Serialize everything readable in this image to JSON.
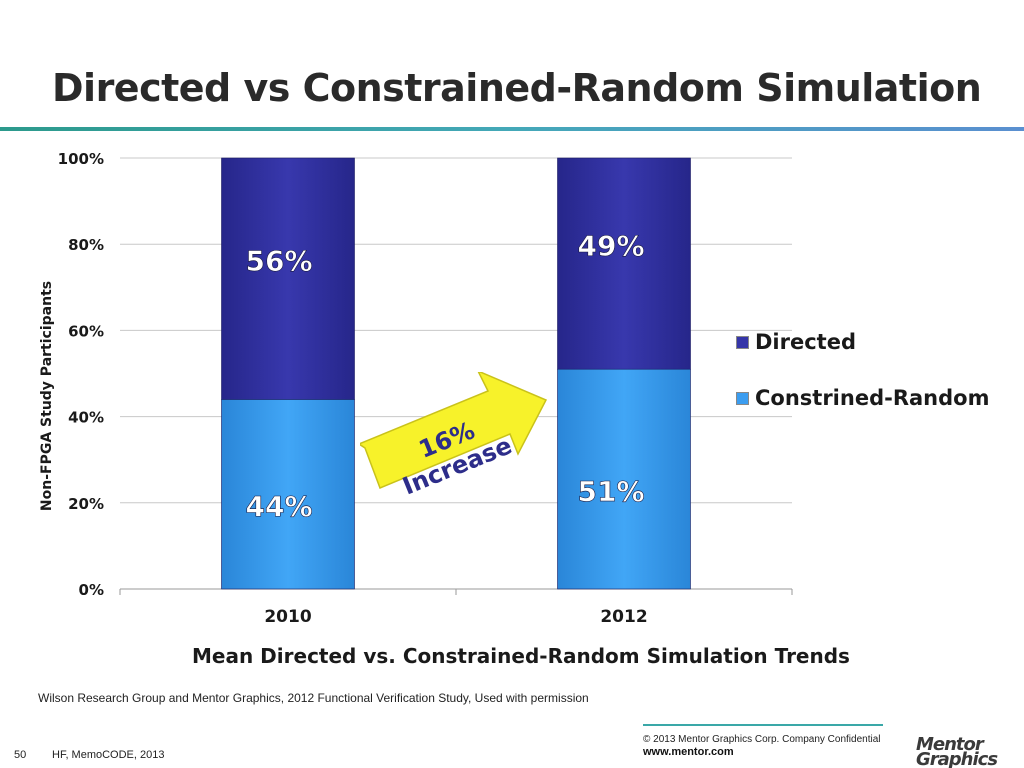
{
  "slide": {
    "title": "Directed vs Constrained-Random Simulation",
    "source_note": "Wilson Research Group and Mentor Graphics, 2012 Functional Verification Study,   Used with permission",
    "callout": "16% Increase",
    "footer": {
      "copyright": "© 2013 Mentor Graphics Corp.     Company Confidential",
      "url": "www.mentor.com",
      "page_number": "50",
      "event": "HF, MemoCODE, 2013",
      "logo_line1": "Mentor",
      "logo_line2": "Graphics"
    },
    "colors": {
      "directed": "#3535a8",
      "constrained_random": "#3b9df0",
      "callout_fill": "#f7f22a",
      "title_rule": "#2c9a8c"
    }
  },
  "chart_data": {
    "type": "bar",
    "stacked": true,
    "percent_stacked": true,
    "categories": [
      "2010",
      "2012"
    ],
    "series": [
      {
        "name": "Constrined-Random",
        "values": [
          44,
          51
        ],
        "labels": [
          "44%",
          "51%"
        ]
      },
      {
        "name": "Directed",
        "values": [
          56,
          49
        ],
        "labels": [
          "56%",
          "49%"
        ]
      }
    ],
    "xlabel": "Mean Directed vs. Constrained-Random Simulation Trends",
    "ylabel": "Non-FPGA Study Participants",
    "ylim": [
      0,
      100
    ],
    "yticks": [
      "0%",
      "20%",
      "40%",
      "60%",
      "80%",
      "100%"
    ],
    "grid": true,
    "legend_position": "right"
  }
}
